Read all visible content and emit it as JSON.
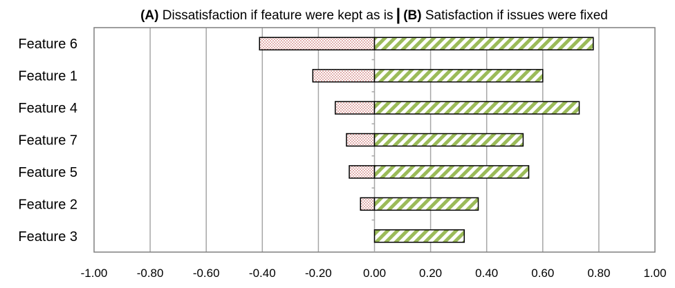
{
  "chart_data": {
    "type": "bar",
    "orientation": "horizontal",
    "title_left_tag": "(A)",
    "title_left_text": " Dissatisfaction if feature were kept as is",
    "title_right_tag": "(B)",
    "title_right_text": " Satisfaction if issues were fixed",
    "categories": [
      "Feature 6",
      "Feature 1",
      "Feature 4",
      "Feature 7",
      "Feature 5",
      "Feature 2",
      "Feature 3"
    ],
    "series": [
      {
        "values": [
          -0.41,
          -0.22,
          -0.14,
          -0.1,
          -0.09,
          -0.05,
          0.0
        ],
        "color": "#c0504d",
        "pattern": "dots"
      },
      {
        "values": [
          0.78,
          0.6,
          0.73,
          0.53,
          0.55,
          0.37,
          0.32
        ],
        "color": "#9bbb59",
        "pattern": "diagonal-stripes"
      }
    ],
    "xlim": [
      -1.0,
      1.0
    ],
    "xticks": [
      "-1.00",
      "-0.80",
      "-0.60",
      "-0.40",
      "-0.20",
      "0.00",
      "0.20",
      "0.40",
      "0.60",
      "0.80",
      "1.00"
    ],
    "grid": true
  }
}
